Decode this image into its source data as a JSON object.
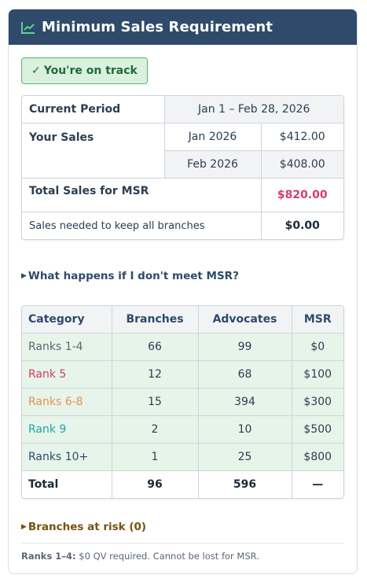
{
  "header": {
    "title": "Minimum Sales Requirement",
    "icon": "trend-chart-icon"
  },
  "status": {
    "check": "✓",
    "label": "You're on track",
    "color": "#1f6b35"
  },
  "period": {
    "current_label": "Current Period",
    "current_value": "Jan 1 – Feb 28, 2026",
    "sales_label": "Your Sales",
    "months": [
      {
        "month": "Jan 2026",
        "amount": "$412.00"
      },
      {
        "month": "Feb 2026",
        "amount": "$408.00"
      }
    ],
    "total_label": "Total Sales for MSR",
    "total_value": "$820.00",
    "needed_label": "Sales needed to keep all branches",
    "needed_value": "$0.00"
  },
  "details_toggle": {
    "label": "What happens if I don't meet MSR?"
  },
  "msr_table": {
    "headers": [
      "Category",
      "Branches",
      "Advocates",
      "MSR"
    ],
    "rows": [
      {
        "category": "Ranks 1-4",
        "color": "#5c6773",
        "branches": "66",
        "advocates": "99",
        "msr": "$0"
      },
      {
        "category": "Rank 5",
        "color": "#d43c5e",
        "branches": "12",
        "advocates": "68",
        "msr": "$100"
      },
      {
        "category": "Ranks 6-8",
        "color": "#e8914a",
        "branches": "15",
        "advocates": "394",
        "msr": "$300"
      },
      {
        "category": "Rank 9",
        "color": "#1fa6a0",
        "branches": "2",
        "advocates": "10",
        "msr": "$500"
      },
      {
        "category": "Ranks 10+",
        "color": "#2f4a6b",
        "branches": "1",
        "advocates": "25",
        "msr": "$800"
      }
    ],
    "total": {
      "category": "Total",
      "branches": "96",
      "advocates": "596",
      "msr": "—"
    }
  },
  "risk_toggle": {
    "label": "Branches at risk (0)"
  },
  "footer": {
    "label": "Ranks 1–4:",
    "text": " $0 QV required. Cannot be lost for MSR."
  },
  "colors": {
    "header_bg": "#2f4a6b",
    "accent_pink": "#d43c73",
    "row_green": "#e6f4ea"
  }
}
